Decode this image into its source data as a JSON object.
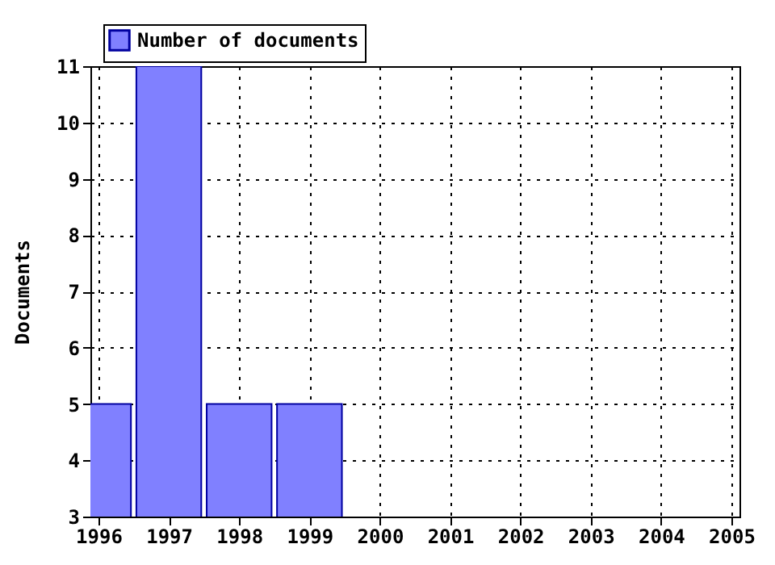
{
  "chart_data": {
    "type": "bar",
    "x": [
      1996,
      1997,
      1998,
      1999
    ],
    "series": [
      {
        "name": "Number of documents",
        "color": "#8080ff",
        "values": [
          5,
          11,
          5,
          5
        ]
      }
    ],
    "ylabel": "Documents",
    "xlim": [
      1996,
      2005
    ],
    "xticks": [
      1996,
      1997,
      1998,
      1999,
      2000,
      2001,
      2002,
      2003,
      2004,
      2005
    ],
    "ylim": [
      3,
      11
    ],
    "yticks": [
      3,
      4,
      5,
      6,
      7,
      8,
      9,
      10,
      11
    ],
    "grid": true,
    "legend": "top left"
  }
}
